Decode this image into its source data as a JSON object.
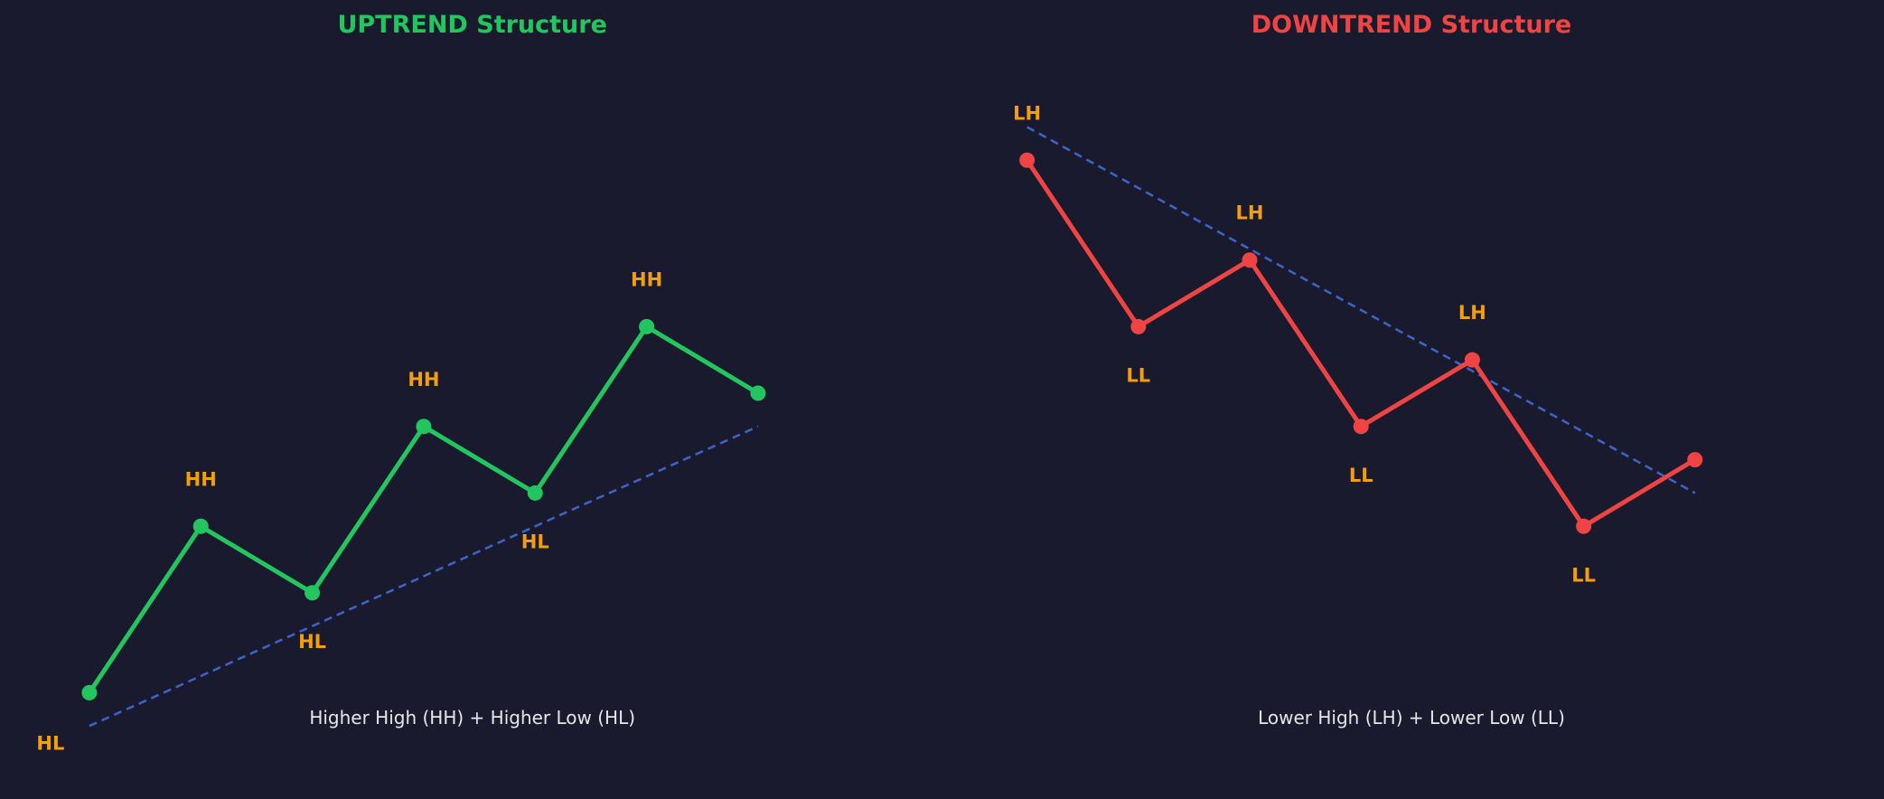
{
  "colors": {
    "background": "#1a1a2e",
    "uptrend": "#22c55e",
    "downtrend": "#ef4444",
    "trendline": "#3b63c4",
    "swing_label": "#f59e0b",
    "caption": "#e6e6e6"
  },
  "chart_data": [
    {
      "type": "line",
      "title": "UPTREND Structure",
      "caption": "Higher High (HH) + Higher Low (HL)",
      "xlabel": "",
      "ylabel": "",
      "axes_visible": false,
      "grid": false,
      "xlim": [
        -0.5,
        6.5
      ],
      "ylim": [
        0,
        11
      ],
      "series": [
        {
          "x": [
            0,
            1,
            2,
            3,
            4,
            5,
            6
          ],
          "values": [
            1.0,
            3.5,
            2.5,
            5.0,
            4.0,
            6.5,
            5.5
          ],
          "point_labels": [
            "HL",
            "HH",
            "HL",
            "HH",
            "HL",
            "HH",
            ""
          ]
        }
      ],
      "trendline": {
        "style": "dashed",
        "x": [
          0,
          6
        ],
        "y": [
          0.5,
          5.0
        ]
      }
    },
    {
      "type": "line",
      "title": "DOWNTREND Structure",
      "caption": "Lower High (LH) + Lower Low (LL)",
      "xlabel": "",
      "ylabel": "",
      "axes_visible": false,
      "grid": false,
      "xlim": [
        -0.5,
        6.5
      ],
      "ylim": [
        0,
        11
      ],
      "series": [
        {
          "x": [
            0,
            1,
            2,
            3,
            4,
            5,
            6
          ],
          "values": [
            9.0,
            6.5,
            7.5,
            5.0,
            6.0,
            3.5,
            4.5
          ],
          "point_labels": [
            "LH",
            "LL",
            "LH",
            "LL",
            "LH",
            "LL",
            ""
          ]
        }
      ],
      "trendline": {
        "style": "dashed",
        "x": [
          0,
          6
        ],
        "y": [
          9.5,
          4.0
        ]
      }
    }
  ]
}
